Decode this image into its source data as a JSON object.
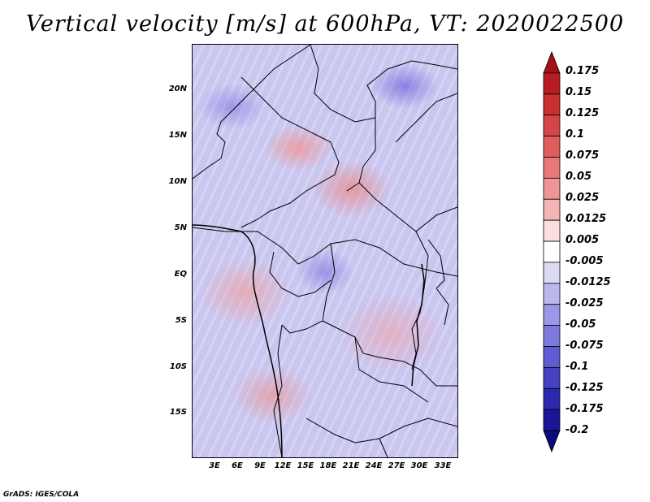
{
  "title": "Vertical velocity [m/s] at 600hPa, VT: 2020022500",
  "credit": "GrADS: IGES/COLA",
  "y_axis_labels": [
    "20N",
    "15N",
    "10N",
    "5N",
    "EQ",
    "5S",
    "10S",
    "15S"
  ],
  "x_axis_labels": [
    "3E",
    "6E",
    "9E",
    "12E",
    "15E",
    "18E",
    "21E",
    "24E",
    "27E",
    "30E",
    "33E"
  ],
  "colorbar": {
    "labels": [
      "0.175",
      "0.15",
      "0.125",
      "0.1",
      "0.075",
      "0.05",
      "0.025",
      "0.0125",
      "0.005",
      "-0.005",
      "-0.0125",
      "-0.025",
      "-0.05",
      "-0.075",
      "-0.1",
      "-0.125",
      "-0.175",
      "-0.2"
    ],
    "colors": [
      "#a50f15",
      "#b81c22",
      "#c9302f",
      "#d64545",
      "#e05d5d",
      "#e87878",
      "#f09595",
      "#f5b5b5",
      "#fbdede",
      "#ffffff",
      "#dcdaf5",
      "#bcb8ee",
      "#9d98e6",
      "#7e79dd",
      "#605bd2",
      "#4640c3",
      "#2c27b0",
      "#1a1595",
      "#0d0a7a"
    ]
  }
}
